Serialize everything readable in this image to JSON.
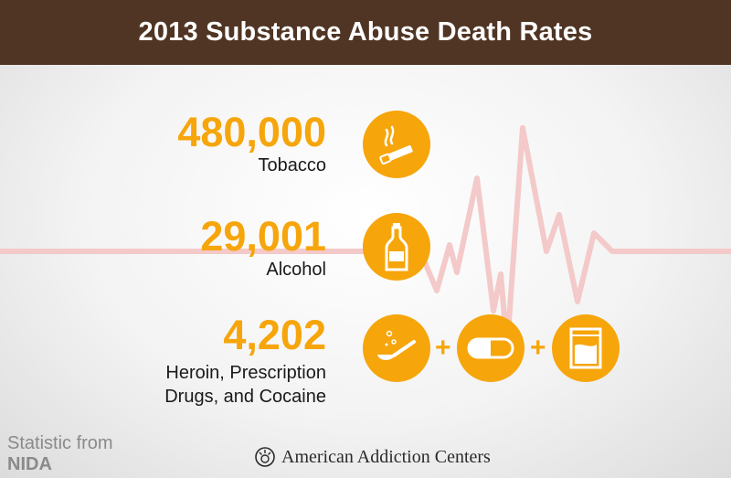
{
  "title": "2013 Substance Abuse Death Rates",
  "stats": [
    {
      "value": "480,000",
      "label": "Tobacco",
      "icon": "cigarette-icon"
    },
    {
      "value": "29,001",
      "label": "Alcohol",
      "icon": "bottle-icon"
    },
    {
      "value": "4,202",
      "label_line1": "Heroin, Prescription",
      "label_line2": "Drugs, and Cocaine",
      "icons": [
        "spoon-icon",
        "pill-icon",
        "powder-bag-icon"
      ]
    }
  ],
  "plus_sign": "+",
  "source": {
    "prefix": "Statistic from",
    "name": "NIDA"
  },
  "footer": {
    "brand": "American Addiction Centers"
  },
  "colors": {
    "header_bg": "#503524",
    "accent": "#f6a50b",
    "pulse_line": "#f3c6c6"
  }
}
